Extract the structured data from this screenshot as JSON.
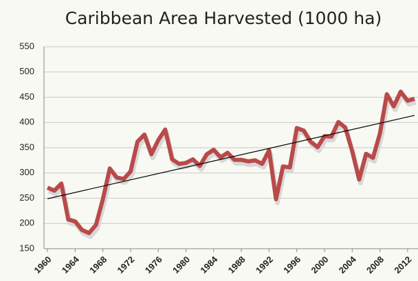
{
  "chart_data": {
    "type": "line",
    "title": "Caribbean Area Harvested (1000 ha)",
    "x": [
      1960,
      1961,
      1962,
      1963,
      1964,
      1965,
      1966,
      1967,
      1968,
      1969,
      1970,
      1971,
      1972,
      1973,
      1974,
      1975,
      1976,
      1977,
      1978,
      1979,
      1980,
      1981,
      1982,
      1983,
      1984,
      1985,
      1986,
      1987,
      1988,
      1989,
      1990,
      1991,
      1992,
      1993,
      1994,
      1995,
      1996,
      1997,
      1998,
      1999,
      2000,
      2001,
      2002,
      2003,
      2004,
      2005,
      2006,
      2007,
      2008,
      2009,
      2010,
      2011,
      2012,
      2013
    ],
    "series": [
      {
        "color": "#b94a4a",
        "values": [
          271,
          265,
          279,
          208,
          204,
          187,
          181,
          197,
          248,
          309,
          291,
          288,
          303,
          362,
          376,
          337,
          365,
          386,
          327,
          318,
          320,
          327,
          314,
          337,
          346,
          331,
          340,
          326,
          326,
          323,
          325,
          318,
          345,
          248,
          313,
          311,
          389,
          384,
          362,
          351,
          373,
          372,
          401,
          390,
          343,
          287,
          338,
          330,
          378,
          456,
          432,
          461,
          443,
          447
        ]
      }
    ],
    "trendline": {
      "color": "#000000",
      "x": [
        1960,
        2013
      ],
      "values": [
        249,
        414
      ]
    },
    "xlim": [
      1959.5,
      2013.5
    ],
    "xticks": [
      1960,
      1964,
      1968,
      1972,
      1976,
      1980,
      1984,
      1988,
      1992,
      1996,
      2000,
      2004,
      2008,
      2012
    ],
    "ylim": [
      150,
      550
    ],
    "yticks": [
      150,
      200,
      250,
      300,
      350,
      400,
      450,
      500,
      550
    ],
    "grid": true
  }
}
